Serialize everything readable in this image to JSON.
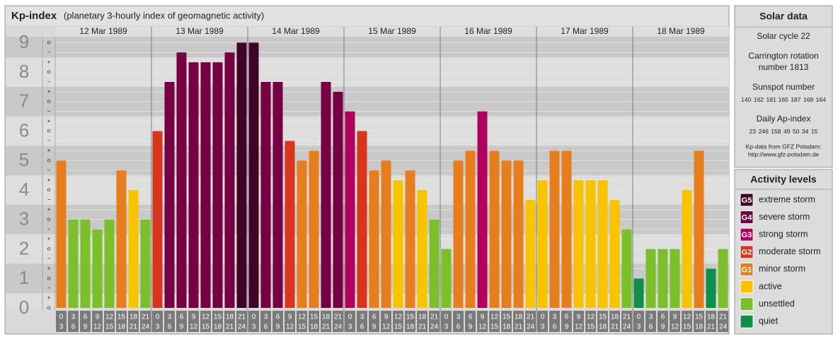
{
  "chart_data": {
    "type": "bar",
    "title": "Kp-index",
    "subtitle": "(planetary 3-hourly index of geomagnetic activity)",
    "days": [
      "12 Mar 1989",
      "13 Mar 1989",
      "14 Mar 1989",
      "15 Mar 1989",
      "16 Mar 1989",
      "17 Mar 1989",
      "18 Mar 1989"
    ],
    "intervals": [
      {
        "start": "0",
        "end": "3"
      },
      {
        "start": "3",
        "end": "6"
      },
      {
        "start": "6",
        "end": "9"
      },
      {
        "start": "9",
        "end": "12"
      },
      {
        "start": "12",
        "end": "15"
      },
      {
        "start": "15",
        "end": "18"
      },
      {
        "start": "18",
        "end": "21"
      },
      {
        "start": "21",
        "end": "24"
      }
    ],
    "values": [
      5,
      3,
      3,
      2.667,
      3,
      4.667,
      4,
      3,
      6,
      7.667,
      8.667,
      8.333,
      8.333,
      8.333,
      8.667,
      9,
      9,
      7.667,
      7.667,
      5.667,
      5,
      5.333,
      7.667,
      7.333,
      6.667,
      6,
      4.667,
      5,
      4.333,
      4.667,
      4,
      3,
      2,
      5,
      5.333,
      6.667,
      5.333,
      5,
      5,
      3.667,
      4.333,
      5.333,
      5.333,
      4.333,
      4.333,
      4.333,
      3.667,
      2.667,
      1,
      2,
      2,
      2,
      4,
      5.333,
      1.333,
      2
    ],
    "colors": [
      "#e67e1e",
      "#7bbf2a",
      "#7bbf2a",
      "#7bbf2a",
      "#7bbf2a",
      "#e67e1e",
      "#f8c300",
      "#7bbf2a",
      "#d8351e",
      "#760042",
      "#760042",
      "#760042",
      "#760042",
      "#760042",
      "#760042",
      "#3f0526",
      "#3f0526",
      "#760042",
      "#760042",
      "#d8351e",
      "#e67e1e",
      "#e67e1e",
      "#760042",
      "#760042",
      "#b2005f",
      "#d8351e",
      "#e67e1e",
      "#e67e1e",
      "#f8c300",
      "#e67e1e",
      "#f8c300",
      "#7bbf2a",
      "#7bbf2a",
      "#e67e1e",
      "#e67e1e",
      "#b2005f",
      "#e67e1e",
      "#e67e1e",
      "#e67e1e",
      "#f8c300",
      "#f8c300",
      "#e67e1e",
      "#e67e1e",
      "#f8c300",
      "#f8c300",
      "#f8c300",
      "#f8c300",
      "#7bbf2a",
      "#0f8f4a",
      "#7bbf2a",
      "#7bbf2a",
      "#7bbf2a",
      "#f8c300",
      "#e67e1e",
      "#0f8f4a",
      "#7bbf2a"
    ],
    "ylim": [
      0,
      9.2
    ],
    "yticks": [
      0,
      1,
      2,
      3,
      4,
      5,
      6,
      7,
      8,
      9
    ],
    "minor_yticks": [
      {
        "value": 0,
        "label": "o"
      },
      {
        "value": 0.333,
        "label": "+"
      },
      {
        "value": 0.667,
        "label": "−"
      },
      {
        "value": 1,
        "label": "o"
      },
      {
        "value": 1.333,
        "label": "+"
      },
      {
        "value": 1.667,
        "label": "−"
      },
      {
        "value": 2,
        "label": "o"
      },
      {
        "value": 2.333,
        "label": "+"
      },
      {
        "value": 2.667,
        "label": "−"
      },
      {
        "value": 3,
        "label": "o"
      },
      {
        "value": 3.333,
        "label": "+"
      },
      {
        "value": 3.667,
        "label": "−"
      },
      {
        "value": 4,
        "label": "o"
      },
      {
        "value": 4.333,
        "label": "+"
      },
      {
        "value": 4.667,
        "label": "−"
      },
      {
        "value": 5,
        "label": "o"
      },
      {
        "value": 5.333,
        "label": "+"
      },
      {
        "value": 5.667,
        "label": "−"
      },
      {
        "value": 6,
        "label": "o"
      },
      {
        "value": 6.333,
        "label": "+"
      },
      {
        "value": 6.667,
        "label": "−"
      },
      {
        "value": 7,
        "label": "o"
      },
      {
        "value": 7.333,
        "label": "+"
      },
      {
        "value": 7.667,
        "label": "−"
      },
      {
        "value": 8,
        "label": "o"
      },
      {
        "value": 8.333,
        "label": "+"
      },
      {
        "value": 8.667,
        "label": "−"
      },
      {
        "value": 9,
        "label": "o"
      }
    ],
    "grid": true
  },
  "solar": {
    "title": "Solar data",
    "cycle": "Solar cycle 22",
    "carrington": [
      "Carrington rotation",
      "number 1813"
    ],
    "sunspot_label": "Sunspot number",
    "sunspot_numbers": [
      140,
      162,
      181,
      165,
      187,
      168,
      164
    ],
    "ap_label": "Daily Ap-index",
    "ap_values": [
      23,
      246,
      158,
      49,
      50,
      34,
      15
    ],
    "source": [
      "Kp-data from GFZ Potsdam:",
      "http://www.gfz-potsdam.de"
    ]
  },
  "legend": {
    "title": "Activity levels",
    "items": [
      {
        "code": "G5",
        "name": "extreme storm",
        "color": "#3f0526"
      },
      {
        "code": "G4",
        "name": "severe storm",
        "color": "#760042"
      },
      {
        "code": "G3",
        "name": "strong storm",
        "color": "#b2005f"
      },
      {
        "code": "G2",
        "name": "moderate storm",
        "color": "#d8351e"
      },
      {
        "code": "G1",
        "name": "minor storm",
        "color": "#e67e1e"
      },
      {
        "name": "active",
        "color": "#f8c300"
      },
      {
        "name": "unsettled",
        "color": "#7bbf2a"
      },
      {
        "name": "quiet",
        "color": "#0f8f4a"
      }
    ]
  }
}
